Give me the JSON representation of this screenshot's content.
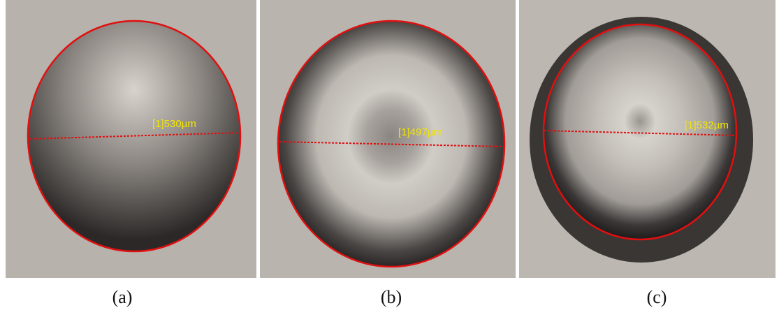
{
  "panels": [
    {
      "measurement": "[1]530µm",
      "caption": "(a)"
    },
    {
      "measurement": "[1]497µm",
      "caption": "(b)"
    },
    {
      "measurement": "[1]532µm",
      "caption": "(c)"
    }
  ]
}
